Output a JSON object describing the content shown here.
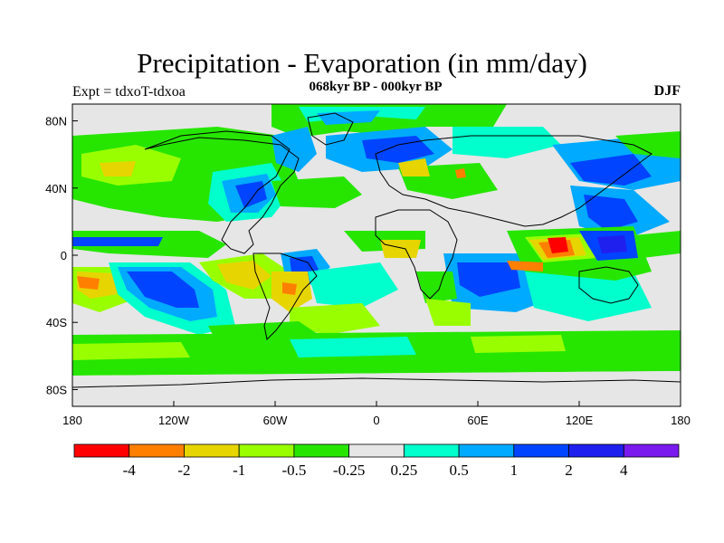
{
  "title": "Precipitation - Evaporation (in mm/day)",
  "subtitle": "068kyr BP - 000kyr BP",
  "left_label": "Expt = tdxoT-tdxoa",
  "right_label": "DJF",
  "map": {
    "projection": "cylindrical-equidistant",
    "lon_range": [
      -180,
      180
    ],
    "lat_range": [
      -90,
      90
    ],
    "background_color": "#e6e6e6",
    "coastline_color": "#000000"
  },
  "axes": {
    "x_ticks": [
      {
        "value": -180,
        "label": "180"
      },
      {
        "value": -120,
        "label": "120W"
      },
      {
        "value": -60,
        "label": "60W"
      },
      {
        "value": 0,
        "label": "0"
      },
      {
        "value": 60,
        "label": "60E"
      },
      {
        "value": 120,
        "label": "120E"
      },
      {
        "value": 180,
        "label": "180"
      }
    ],
    "y_ticks": [
      {
        "value": 80,
        "label": "80N"
      },
      {
        "value": 40,
        "label": "40N"
      },
      {
        "value": 0,
        "label": "0"
      },
      {
        "value": -40,
        "label": "40S"
      },
      {
        "value": -80,
        "label": "80S"
      }
    ]
  },
  "colorbar": {
    "colors": [
      "#ff0000",
      "#ff7f00",
      "#e6d500",
      "#99ff00",
      "#26e600",
      "#e6e6e6",
      "#00ffcc",
      "#00aaff",
      "#0044ff",
      "#2020ee",
      "#7a1aee"
    ],
    "labels": [
      "-4",
      "-2",
      "-1",
      "-0.5",
      "-0.25",
      "0.25",
      "0.5",
      "1",
      "2",
      "4"
    ]
  },
  "colors": {
    "green": "#26e600",
    "lime": "#99ff00",
    "yellow": "#e6d500",
    "orange": "#ff7f00",
    "red": "#ff0000",
    "cyan": "#00ffcc",
    "lightblue": "#00aaff",
    "blue": "#0044ff",
    "darkblue": "#2020ee"
  }
}
